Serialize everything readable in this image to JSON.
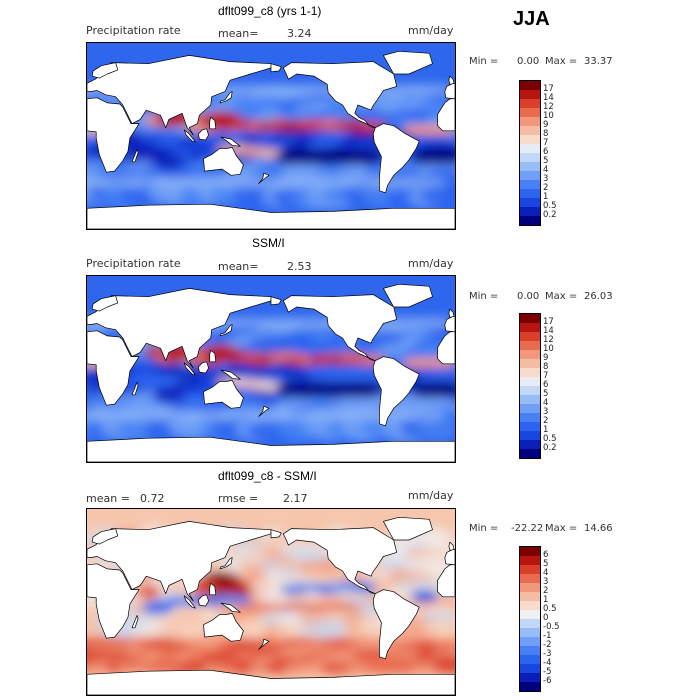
{
  "season": "JJA",
  "units": "mm/day",
  "colors": {
    "precip": [
      "#00007e",
      "#0a1fb8",
      "#1747e0",
      "#2a64ef",
      "#4781f5",
      "#6f9ff7",
      "#97bdf7",
      "#c3d8f8",
      "#e8ecf5",
      "#f8dccb",
      "#f6bca3",
      "#f2977a",
      "#e86b4f",
      "#d9402b",
      "#b81510",
      "#7a0000"
    ],
    "diff": [
      "#00007e",
      "#0a1fb8",
      "#1747e0",
      "#2a64ef",
      "#4781f5",
      "#6f9ff7",
      "#97bdf7",
      "#c3d8f8",
      "#eef0f4",
      "#f8dccb",
      "#f6bca3",
      "#f2977a",
      "#e86b4f",
      "#d9402b",
      "#b81510",
      "#7a0000"
    ]
  },
  "chart_data": [
    {
      "type": "heatmap",
      "title": "dflt099_c8 (yrs 1-1)",
      "field": "Precipitation rate",
      "mean_label": "mean=",
      "mean": "3.24",
      "units": "mm/day",
      "min_label": "Min =",
      "min": "0.00",
      "max_label": "Max =",
      "max": "33.37",
      "levels": [
        "0.2",
        "0.5",
        "1",
        "2",
        "3",
        "4",
        "5",
        "6",
        "7",
        "8",
        "9",
        "10",
        "12",
        "14",
        "17"
      ]
    },
    {
      "type": "heatmap",
      "title": "SSM/I",
      "field": "Precipitation rate",
      "mean_label": "mean=",
      "mean": "2.53",
      "units": "mm/day",
      "min_label": "Min =",
      "min": "0.00",
      "max_label": "Max =",
      "max": "26.03",
      "levels": [
        "0.2",
        "0.5",
        "1",
        "2",
        "3",
        "4",
        "5",
        "6",
        "7",
        "8",
        "9",
        "10",
        "12",
        "14",
        "17"
      ]
    },
    {
      "type": "heatmap",
      "title": "dflt099_c8 - SSM/I",
      "mean_label": "mean =",
      "mean": "0.72",
      "rmse_label": "rmse =",
      "rmse": "2.17",
      "units": "mm/day",
      "min_label": "Min =",
      "min": "-22.22",
      "max_label": "Max =",
      "max": "14.66",
      "levels": [
        "-6",
        "-5",
        "-4",
        "-3",
        "-2",
        "-1",
        "-0.5",
        "0",
        "0.5",
        "1",
        "2",
        "3",
        "4",
        "5",
        "6"
      ]
    }
  ]
}
